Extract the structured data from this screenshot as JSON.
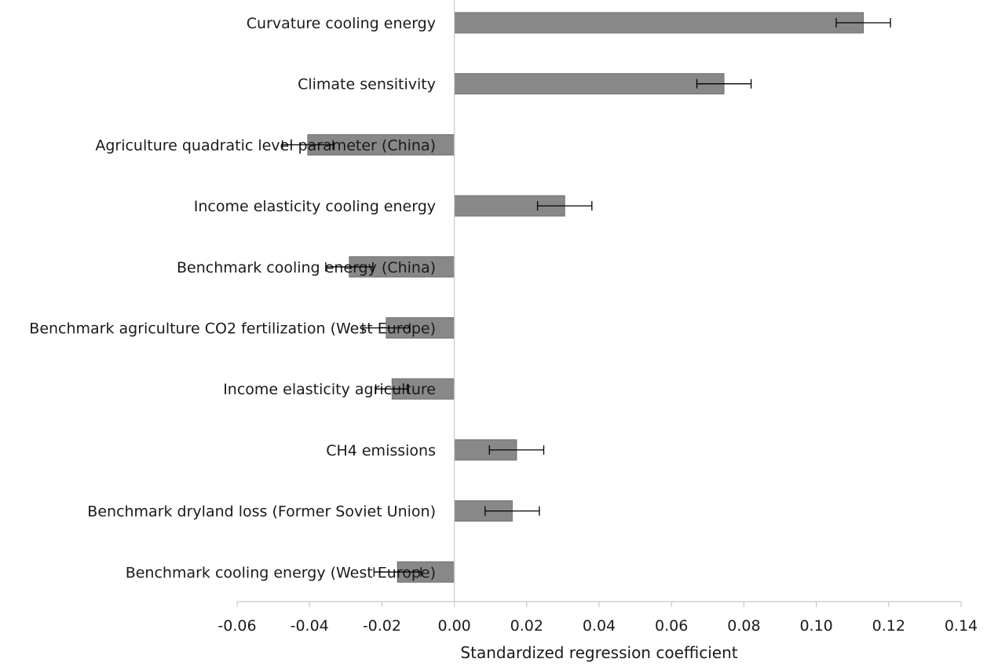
{
  "chart_data": {
    "type": "bar",
    "orientation": "horizontal",
    "categories": [
      "Curvature cooling energy",
      "Climate sensitivity",
      "Agriculture quadratic level parameter (China)",
      "Income elasticity cooling energy",
      "Benchmark cooling energy (China)",
      "Benchmark agriculture CO2 fertilization (West Europe)",
      "Income elasticity agriculture",
      "CH4 emissions",
      "Benchmark dryland loss (Former Soviet Union)",
      "Benchmark cooling energy (West Europe)"
    ],
    "values": [
      0.113,
      0.0745,
      -0.0405,
      0.0305,
      -0.029,
      -0.0188,
      -0.0172,
      0.0172,
      0.016,
      -0.0157
    ],
    "error": [
      0.0075,
      0.0075,
      0.007,
      0.0075,
      0.0065,
      0.0065,
      0.0045,
      0.0075,
      0.0075,
      0.0065
    ],
    "xlim": [
      -0.06,
      0.14
    ],
    "xticks": [
      -0.06,
      -0.04,
      -0.02,
      0.0,
      0.02,
      0.04,
      0.06,
      0.08,
      0.1,
      0.12,
      0.14
    ],
    "xtick_labels": [
      "-0.06",
      "-0.04",
      "-0.02",
      "0.00",
      "0.02",
      "0.04",
      "0.06",
      "0.08",
      "0.10",
      "0.12",
      "0.14"
    ],
    "xlabel": "Standardized regression coefficient",
    "ylabel": "",
    "title": "",
    "grid": false,
    "legend": "none",
    "bar_color": "#888888",
    "bar_edge_color": "#6e6e6e",
    "error_bar_color": "#000000",
    "axis_color": "#c8c8c8"
  }
}
